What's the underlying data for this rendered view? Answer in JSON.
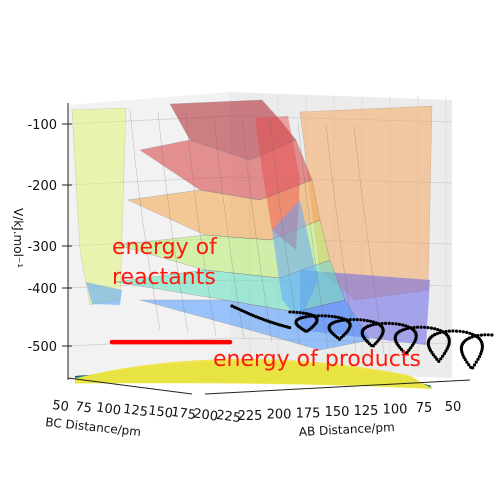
{
  "chart_data": {
    "type": "surface3d",
    "zlabel": "V/kJ.mol⁻¹",
    "xlabel": "AB Distance/pm",
    "ylabel": "BC Distance/pm",
    "z_ticks": [
      "-100",
      "-200",
      "-300",
      "-400",
      "-500"
    ],
    "ab_ticks": [
      "225",
      "200",
      "175",
      "150",
      "125",
      "100",
      "75",
      "50"
    ],
    "bc_ticks": [
      "50",
      "75",
      "100",
      "125",
      "150",
      "175",
      "200",
      "225"
    ],
    "zlim": [
      -570,
      -80
    ],
    "annotations": {
      "reactants": [
        "energy of",
        "reactants"
      ],
      "products": "energy of products"
    },
    "levels": {
      "reactants_energy": -430,
      "products_energy": -545
    },
    "colors": {
      "annotation": "#ff1a0a",
      "energy_line": "#ff0000",
      "trajectory": "#000000",
      "colormap": [
        "#30123b",
        "#3b4cc0",
        "#4f9bff",
        "#60e0c0",
        "#b8f070",
        "#f7e14a",
        "#f4a64a",
        "#d94040",
        "#b0202a"
      ]
    }
  }
}
